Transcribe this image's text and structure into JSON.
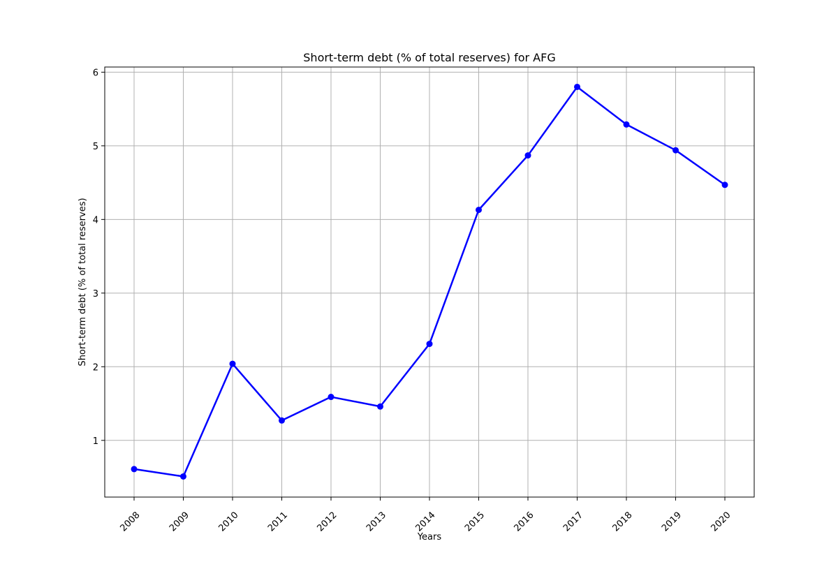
{
  "chart_data": {
    "type": "line",
    "title": "Short-term debt (% of total reserves) for AFG",
    "xlabel": "Years",
    "ylabel": "Short-term debt (% of total reserves)",
    "categories": [
      "2008",
      "2009",
      "2010",
      "2011",
      "2012",
      "2013",
      "2014",
      "2015",
      "2016",
      "2017",
      "2018",
      "2019",
      "2020"
    ],
    "series": [
      {
        "values": [
          0.61,
          0.51,
          2.04,
          1.27,
          1.59,
          1.46,
          2.31,
          4.13,
          4.87,
          5.8,
          5.29,
          4.94,
          4.47
        ]
      }
    ],
    "ylim": [
      0.23,
      6.07
    ],
    "yticks": [
      1,
      2,
      3,
      4,
      5,
      6
    ],
    "grid": true,
    "line_color": "#0000ff",
    "marker": "circle"
  }
}
